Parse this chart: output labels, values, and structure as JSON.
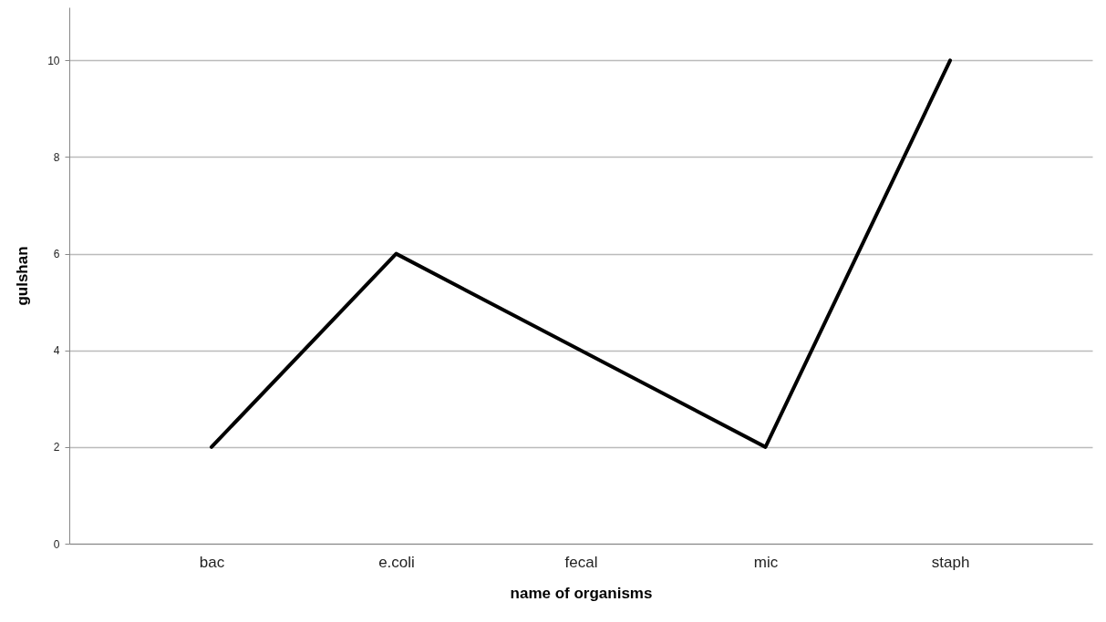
{
  "chart_data": {
    "type": "line",
    "xlabel": "name of organisms",
    "ylabel": "gulshan",
    "categories": [
      "bac",
      "e.coli",
      "fecal",
      "mic",
      "staph"
    ],
    "series": [
      {
        "color": "#000000",
        "values": [
          2,
          6,
          4,
          2,
          10
        ]
      }
    ],
    "ylim": [
      0,
      11.1
    ],
    "yticks": [
      0,
      2,
      4,
      6,
      8,
      10
    ],
    "grid": "y",
    "marker": "none",
    "line_style": "solid"
  }
}
